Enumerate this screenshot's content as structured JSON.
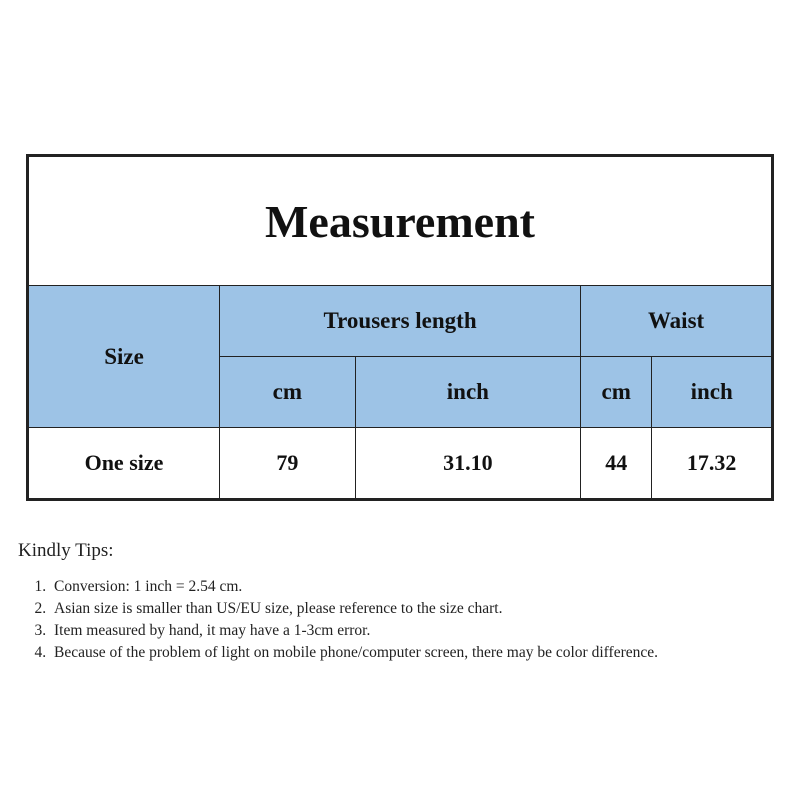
{
  "title": "Measurement",
  "headers": {
    "size": "Size",
    "trousers_length": "Trousers length",
    "waist": "Waist",
    "cm": "cm",
    "inch": "inch"
  },
  "rows": [
    {
      "size": "One size",
      "trousers_cm": "79",
      "trousers_inch": "31.10",
      "waist_cm": "44",
      "waist_inch": "17.32"
    }
  ],
  "header_color": "#9dc3e6",
  "tips": {
    "heading": "Kindly Tips:",
    "items": [
      "Conversion: 1 inch = 2.54 cm.",
      "Asian size is smaller than US/EU size, please reference to the size chart.",
      "Item measured by hand, it may have a 1-3cm error.",
      "Because of the problem of light on mobile phone/computer screen, there may be color difference."
    ]
  }
}
